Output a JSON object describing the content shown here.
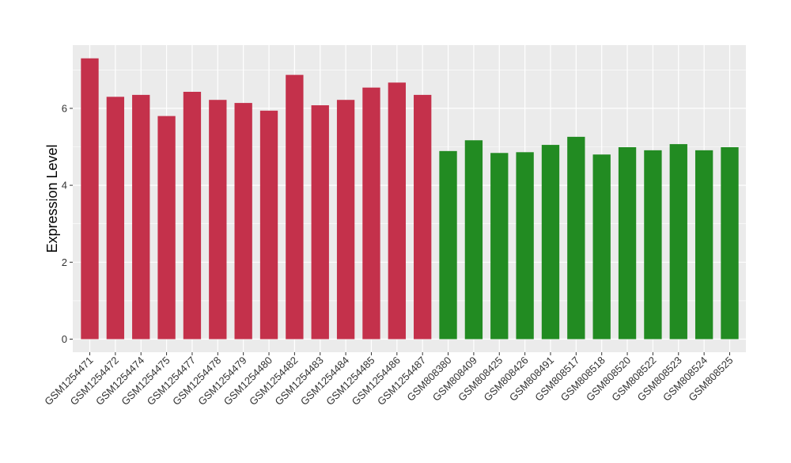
{
  "chart_data": {
    "type": "bar",
    "ylabel": "Expression Level",
    "xlabel": "",
    "ylim": [
      0,
      7.6
    ],
    "yticks": [
      0,
      2,
      4,
      6
    ],
    "grid": true,
    "categories": [
      "GSM1254471",
      "GSM1254472",
      "GSM1254474",
      "GSM1254475",
      "GSM1254477",
      "GSM1254478",
      "GSM1254479",
      "GSM1254480",
      "GSM1254482",
      "GSM1254483",
      "GSM1254484",
      "GSM1254485",
      "GSM1254486",
      "GSM1254487",
      "GSM808380",
      "GSM808409",
      "GSM808425",
      "GSM808426",
      "GSM808491",
      "GSM808517",
      "GSM808518",
      "GSM808520",
      "GSM808522",
      "GSM808523",
      "GSM808524",
      "GSM808525"
    ],
    "values": [
      7.3,
      6.3,
      6.35,
      5.8,
      6.43,
      6.22,
      6.14,
      5.94,
      6.87,
      6.08,
      6.22,
      6.54,
      6.67,
      6.35,
      4.89,
      5.17,
      4.84,
      4.86,
      5.05,
      5.26,
      4.8,
      4.99,
      4.91,
      5.07,
      4.91,
      4.99
    ],
    "bar_colors": [
      "#c4314b",
      "#c4314b",
      "#c4314b",
      "#c4314b",
      "#c4314b",
      "#c4314b",
      "#c4314b",
      "#c4314b",
      "#c4314b",
      "#c4314b",
      "#c4314b",
      "#c4314b",
      "#c4314b",
      "#c4314b",
      "#228b22",
      "#228b22",
      "#228b22",
      "#228b22",
      "#228b22",
      "#228b22",
      "#228b22",
      "#228b22",
      "#228b22",
      "#228b22",
      "#228b22",
      "#228b22"
    ],
    "panel_color": "#ebebeb",
    "grid_color": "#ffffff"
  }
}
